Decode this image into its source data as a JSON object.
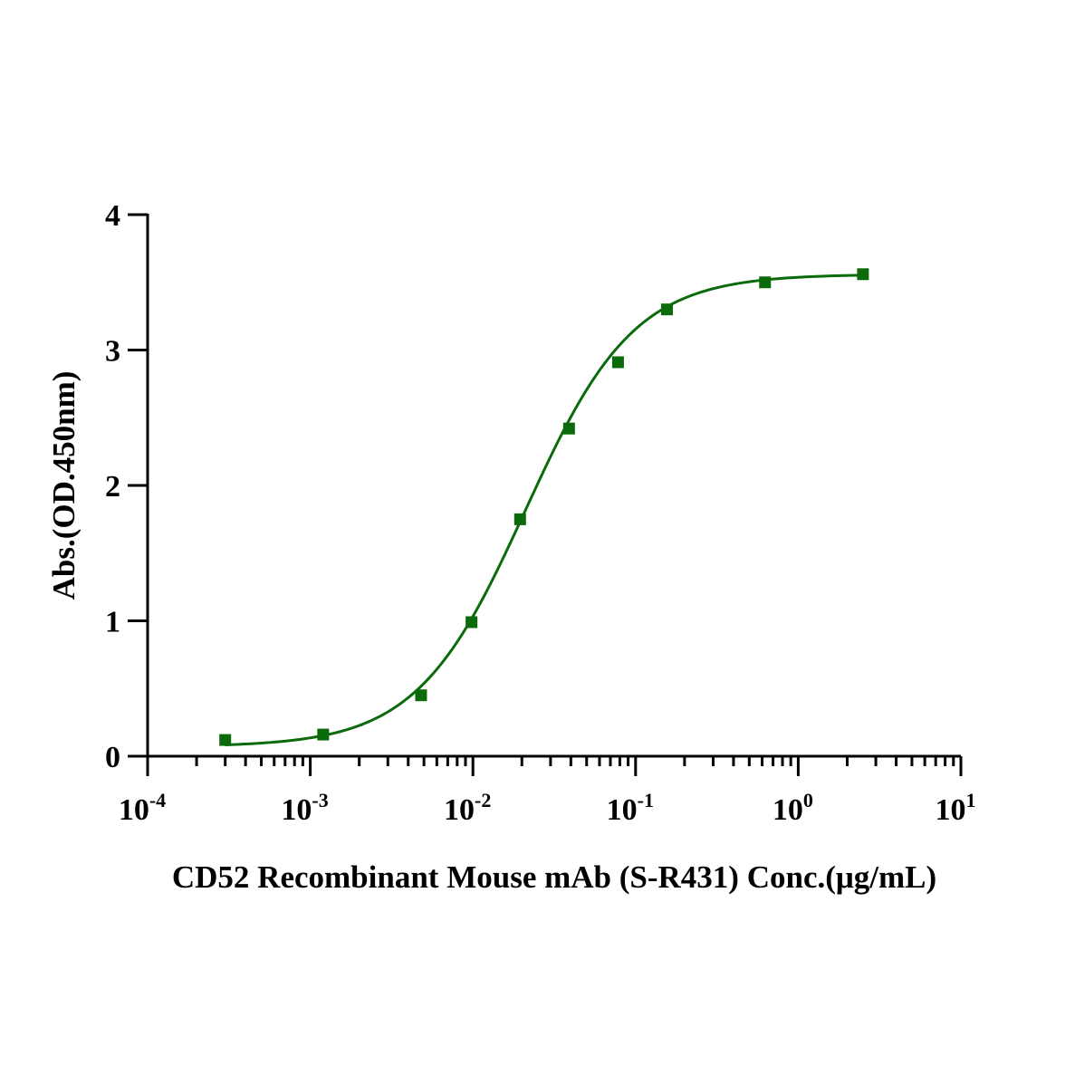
{
  "chart_data": {
    "type": "scatter",
    "title": "",
    "xlabel": "CD52 Recombinant Mouse mAb (S-R431) Conc.(μg/mL)",
    "ylabel": "Abs.(OD.450nm)",
    "x_scale": "log",
    "xlim": [
      0.0001,
      10
    ],
    "ylim": [
      0,
      4
    ],
    "x_ticks": [
      {
        "base": "10",
        "exp": "-4",
        "value": 0.0001
      },
      {
        "base": "10",
        "exp": "-3",
        "value": 0.001
      },
      {
        "base": "10",
        "exp": "-2",
        "value": 0.01
      },
      {
        "base": "10",
        "exp": "-1",
        "value": 0.1
      },
      {
        "base": "10",
        "exp": "0",
        "value": 1
      },
      {
        "base": "10",
        "exp": "1",
        "value": 10
      }
    ],
    "y_ticks": [
      "0",
      "1",
      "2",
      "3",
      "4"
    ],
    "grid": false,
    "legend": "none",
    "color": "#0b6b0b",
    "series": [
      {
        "x": [
          0.0003,
          0.0012,
          0.0048,
          0.0098,
          0.0195,
          0.039,
          0.078,
          0.156,
          0.625,
          2.5
        ],
        "y": [
          0.12,
          0.16,
          0.45,
          0.99,
          1.75,
          2.42,
          2.91,
          3.3,
          3.5,
          3.56
        ],
        "marker": "square",
        "fit": "4PL"
      }
    ],
    "fit_curve": {
      "bottom": 0.07,
      "top": 3.56,
      "ec50": 0.021,
      "hill": 1.3
    }
  }
}
